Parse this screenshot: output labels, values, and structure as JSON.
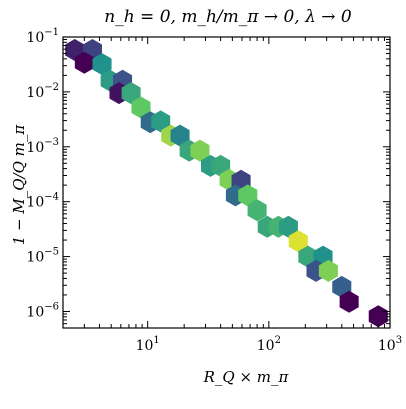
{
  "chart_data": {
    "type": "hexbin",
    "title": "n_h = 0,  m_h/m_π → 0,  λ → 0",
    "xlabel": "R_Q × m_π",
    "ylabel": "1 − M_Q/Q m_π",
    "x_scale": "log",
    "y_scale": "log",
    "xlim": [
      2,
      1000
    ],
    "ylim": [
      5e-07,
      0.1
    ],
    "x_ticks": [
      {
        "value": 10,
        "base": "10",
        "exp": "1"
      },
      {
        "value": 100,
        "base": "10",
        "exp": "2"
      },
      {
        "value": 1000,
        "base": "10",
        "exp": "3"
      }
    ],
    "y_ticks": [
      {
        "value": 0.1,
        "base": "10",
        "exp": "−1"
      },
      {
        "value": 0.01,
        "base": "10",
        "exp": "−2"
      },
      {
        "value": 0.001,
        "base": "10",
        "exp": "−3"
      },
      {
        "value": 0.0001,
        "base": "10",
        "exp": "−4"
      },
      {
        "value": 1e-05,
        "base": "10",
        "exp": "−5"
      },
      {
        "value": 1e-06,
        "base": "10",
        "exp": "−6"
      }
    ],
    "grid": false,
    "colormap": "viridis",
    "hexbins": [
      {
        "x": 2.5,
        "y": 0.058,
        "c": 0.1
      },
      {
        "x": 3.5,
        "y": 0.058,
        "c": 0.2
      },
      {
        "x": 3.0,
        "y": 0.034,
        "c": 0.0
      },
      {
        "x": 4.2,
        "y": 0.032,
        "c": 0.5
      },
      {
        "x": 4.9,
        "y": 0.016,
        "c": 0.55
      },
      {
        "x": 6.2,
        "y": 0.016,
        "c": 0.25
      },
      {
        "x": 5.8,
        "y": 0.0095,
        "c": 0.05
      },
      {
        "x": 7.3,
        "y": 0.0095,
        "c": 0.6
      },
      {
        "x": 8.8,
        "y": 0.0052,
        "c": 0.75
      },
      {
        "x": 10.5,
        "y": 0.0028,
        "c": 0.35
      },
      {
        "x": 12.8,
        "y": 0.0029,
        "c": 0.55
      },
      {
        "x": 15.5,
        "y": 0.0016,
        "c": 0.85
      },
      {
        "x": 18.5,
        "y": 0.0016,
        "c": 0.45
      },
      {
        "x": 22,
        "y": 0.00085,
        "c": 0.6
      },
      {
        "x": 27,
        "y": 0.00085,
        "c": 0.8
      },
      {
        "x": 33,
        "y": 0.00045,
        "c": 0.55
      },
      {
        "x": 40,
        "y": 0.00045,
        "c": 0.6
      },
      {
        "x": 47,
        "y": 0.00025,
        "c": 0.8
      },
      {
        "x": 59,
        "y": 0.00024,
        "c": 0.2
      },
      {
        "x": 53,
        "y": 0.00013,
        "c": 0.35
      },
      {
        "x": 67,
        "y": 0.00013,
        "c": 0.75
      },
      {
        "x": 80,
        "y": 7e-05,
        "c": 0.65
      },
      {
        "x": 97,
        "y": 3.5e-05,
        "c": 0.6
      },
      {
        "x": 120,
        "y": 3.5e-05,
        "c": 0.65
      },
      {
        "x": 145,
        "y": 3.5e-05,
        "c": 0.55
      },
      {
        "x": 175,
        "y": 1.9e-05,
        "c": 0.95
      },
      {
        "x": 210,
        "y": 1e-05,
        "c": 0.6
      },
      {
        "x": 280,
        "y": 1e-05,
        "c": 0.5
      },
      {
        "x": 245,
        "y": 5.5e-06,
        "c": 0.25
      },
      {
        "x": 310,
        "y": 5.5e-06,
        "c": 0.8
      },
      {
        "x": 400,
        "y": 2.8e-06,
        "c": 0.3
      },
      {
        "x": 460,
        "y": 1.5e-06,
        "c": 0.0
      },
      {
        "x": 800,
        "y": 8.2e-07,
        "c": 0.0
      }
    ]
  }
}
